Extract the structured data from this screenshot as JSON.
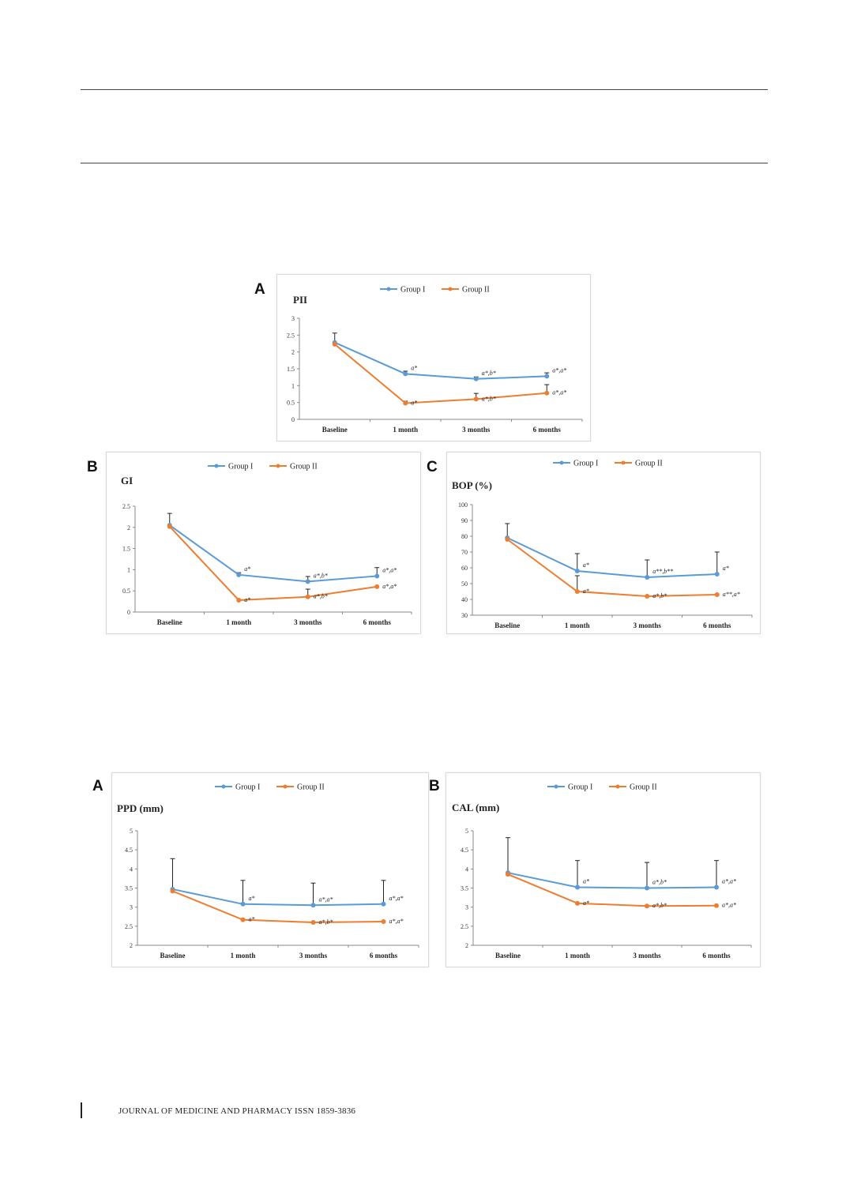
{
  "footer": "JOURNAL OF MEDICINE AND PHARMACY ISSN 1859-3836",
  "colors": {
    "group1": "#5b9bd5",
    "group2": "#ed7d31"
  },
  "legend": [
    "Group I",
    "Group II"
  ],
  "chart_data": [
    {
      "panel": "A",
      "type": "line",
      "title": "PII",
      "categories": [
        "Baseline",
        "1 month",
        "3 months",
        "6 months"
      ],
      "ylim": [
        0,
        3
      ],
      "yticks": [
        "0",
        "0.5",
        "1",
        "1.5",
        "2",
        "2.5",
        "3"
      ],
      "ystep": 0.5,
      "legend_position": "top",
      "grid": false,
      "series": [
        {
          "name": "Group I",
          "values": [
            2.28,
            1.35,
            1.2,
            1.28
          ],
          "err": [
            0.28,
            0.08,
            0.06,
            0.1
          ]
        },
        {
          "name": "Group II",
          "values": [
            2.23,
            0.48,
            0.6,
            0.78
          ],
          "err": [
            0,
            0.06,
            0.17,
            0.25
          ]
        }
      ],
      "annotations": [
        {
          "cat": 1,
          "series": 0,
          "text": "a*"
        },
        {
          "cat": 1,
          "series": 1,
          "text": "a*"
        },
        {
          "cat": 2,
          "series": 0,
          "text": "a*,b*"
        },
        {
          "cat": 2,
          "series": 1,
          "text": "a*,b*"
        },
        {
          "cat": 3,
          "series": 0,
          "text": "a*,a*"
        },
        {
          "cat": 3,
          "series": 1,
          "text": "a*,a*"
        }
      ]
    },
    {
      "panel": "B",
      "type": "line",
      "title": "GI",
      "categories": [
        "Baseline",
        "1 month",
        "3 months",
        "6 months"
      ],
      "ylim": [
        0,
        2.5
      ],
      "yticks": [
        "0",
        "0.5",
        "1",
        "1.5",
        "2",
        "2.5"
      ],
      "ystep": 0.5,
      "legend_position": "top",
      "grid": false,
      "series": [
        {
          "name": "Group I",
          "values": [
            2.05,
            0.88,
            0.72,
            0.85
          ],
          "err": [
            0.28,
            0.05,
            0.12,
            0.2
          ]
        },
        {
          "name": "Group II",
          "values": [
            2.02,
            0.28,
            0.36,
            0.6
          ],
          "err": [
            0,
            0,
            0.18,
            0
          ]
        }
      ],
      "annotations": [
        {
          "cat": 1,
          "series": 0,
          "text": "a*"
        },
        {
          "cat": 1,
          "series": 1,
          "text": "a*"
        },
        {
          "cat": 2,
          "series": 0,
          "text": "a*,b*"
        },
        {
          "cat": 2,
          "series": 1,
          "text": "a*,b*"
        },
        {
          "cat": 3,
          "series": 0,
          "text": "a*,a*"
        },
        {
          "cat": 3,
          "series": 1,
          "text": "a*,a*"
        }
      ]
    },
    {
      "panel": "C",
      "type": "line",
      "title": "BOP (%)",
      "categories": [
        "Baseline",
        "1 month",
        "3 months",
        "6 months"
      ],
      "ylim": [
        30,
        100
      ],
      "yticks": [
        "30",
        "40",
        "50",
        "60",
        "70",
        "80",
        "90",
        "100"
      ],
      "ystep": 10,
      "legend_position": "top",
      "grid": false,
      "series": [
        {
          "name": "Group I",
          "values": [
            79,
            58,
            54,
            56
          ],
          "err": [
            9,
            11,
            11,
            14
          ]
        },
        {
          "name": "Group II",
          "values": [
            78,
            45,
            42,
            43
          ],
          "err": [
            0,
            10,
            0,
            0
          ]
        }
      ],
      "annotations": [
        {
          "cat": 1,
          "series": 0,
          "text": "a*"
        },
        {
          "cat": 1,
          "series": 1,
          "text": "a*"
        },
        {
          "cat": 2,
          "series": 0,
          "text": "a**,b**"
        },
        {
          "cat": 2,
          "series": 1,
          "text": "a*,b*"
        },
        {
          "cat": 3,
          "series": 0,
          "text": "a*"
        },
        {
          "cat": 3,
          "series": 1,
          "text": "a**,a*"
        }
      ]
    },
    {
      "panel": "A",
      "type": "line",
      "title": "PPD (mm)",
      "categories": [
        "Baseline",
        "1 month",
        "3 months",
        "6 months"
      ],
      "ylim": [
        2,
        5
      ],
      "yticks": [
        "2",
        "2.5",
        "3",
        "3.5",
        "4",
        "4.5",
        "5"
      ],
      "ystep": 0.5,
      "legend_position": "top",
      "grid": false,
      "series": [
        {
          "name": "Group I",
          "values": [
            3.47,
            3.08,
            3.05,
            3.08
          ],
          "err": [
            0.8,
            0.62,
            0.58,
            0.62
          ]
        },
        {
          "name": "Group II",
          "values": [
            3.42,
            2.67,
            2.6,
            2.62
          ],
          "err": [
            0,
            0,
            0,
            0
          ]
        }
      ],
      "annotations": [
        {
          "cat": 1,
          "series": 0,
          "text": "a*"
        },
        {
          "cat": 1,
          "series": 1,
          "text": "a*"
        },
        {
          "cat": 2,
          "series": 0,
          "text": "a*,a*"
        },
        {
          "cat": 2,
          "series": 1,
          "text": "a*,b*"
        },
        {
          "cat": 3,
          "series": 0,
          "text": "a*,a*"
        },
        {
          "cat": 3,
          "series": 1,
          "text": "a*,a*"
        }
      ]
    },
    {
      "panel": "B",
      "type": "line",
      "title": "CAL (mm)",
      "categories": [
        "Baseline",
        "1 month",
        "3 months",
        "6 months"
      ],
      "ylim": [
        2,
        5
      ],
      "yticks": [
        "2",
        "2.5",
        "3",
        "3.5",
        "4",
        "4.5",
        "5"
      ],
      "ystep": 0.5,
      "legend_position": "top",
      "grid": false,
      "series": [
        {
          "name": "Group I",
          "values": [
            3.9,
            3.52,
            3.5,
            3.52
          ],
          "err": [
            0.92,
            0.7,
            0.67,
            0.7
          ]
        },
        {
          "name": "Group II",
          "values": [
            3.86,
            3.1,
            3.03,
            3.04
          ],
          "err": [
            0,
            0,
            0,
            0
          ]
        }
      ],
      "annotations": [
        {
          "cat": 1,
          "series": 0,
          "text": "a*"
        },
        {
          "cat": 1,
          "series": 1,
          "text": "a*"
        },
        {
          "cat": 2,
          "series": 0,
          "text": "a*,b*"
        },
        {
          "cat": 2,
          "series": 1,
          "text": "a*,b*"
        },
        {
          "cat": 3,
          "series": 0,
          "text": "a*,a*"
        },
        {
          "cat": 3,
          "series": 1,
          "text": "a*,a*"
        }
      ]
    }
  ]
}
